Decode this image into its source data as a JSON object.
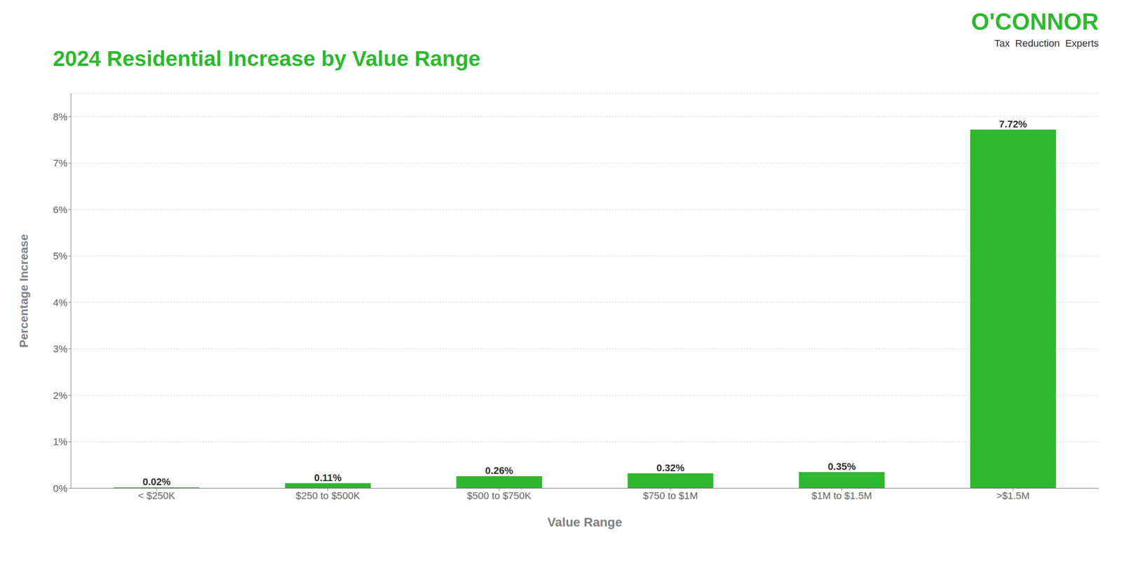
{
  "chart_data": {
    "type": "bar",
    "title": "2024 Residential Increase by Value Range",
    "xlabel": "Value Range",
    "ylabel": "Percentage Increase",
    "annotations": [
      "O'CONNOR",
      "Tax  Reduction  Experts"
    ],
    "categories": [
      "< $250K",
      "$250 to $500K",
      "$500 to $750K",
      "$750 to $1M",
      "$1M to $1.5M",
      ">$1.5M"
    ],
    "values": [
      0.02,
      0.11,
      0.26,
      0.32,
      0.35,
      7.72
    ],
    "value_labels": [
      "0.02%",
      "0.11%",
      "0.26%",
      "0.32%",
      "0.35%",
      "7.72%"
    ],
    "color": "#2db830",
    "ylim": [
      0,
      8.5
    ],
    "yticks": [
      {
        "value": 0,
        "label": "0%"
      },
      {
        "value": 1,
        "label": "1%"
      },
      {
        "value": 2,
        "label": "2%"
      },
      {
        "value": 3,
        "label": "3%"
      },
      {
        "value": 4,
        "label": "4%"
      },
      {
        "value": 5,
        "label": "5%"
      },
      {
        "value": 6,
        "label": "6%"
      },
      {
        "value": 7,
        "label": "7%"
      },
      {
        "value": 8,
        "label": "8%"
      }
    ],
    "grid": true,
    "data_labels": true
  }
}
